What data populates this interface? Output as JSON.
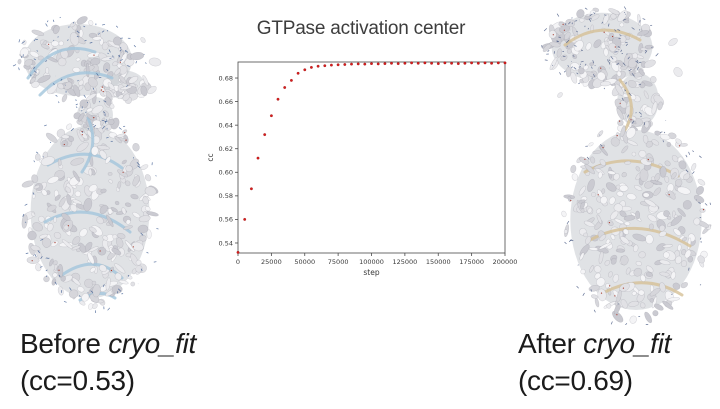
{
  "before_panel": {
    "image": "cryo-em-density-map-before",
    "label_prefix": "Before ",
    "program_name": "cryo_fit",
    "cc_line": "(cc=0.53)"
  },
  "after_panel": {
    "image": "cryo-em-density-map-after",
    "label_prefix": "After ",
    "program_name": "cryo_fit",
    "cc_line": "(cc=0.69)"
  },
  "chart_data": {
    "type": "scatter",
    "title": "GTPase activation center",
    "xlabel": "step",
    "ylabel": "cc",
    "grid": false,
    "legend": null,
    "marker_color": "#d81c1c",
    "marker_edge_color": "#8f0f0f",
    "xlim": [
      0,
      200000
    ],
    "ylim": [
      0.5315,
      0.6936
    ],
    "xticks": [
      0,
      25000,
      50000,
      75000,
      100000,
      125000,
      150000,
      175000,
      200000
    ],
    "yticks": [
      0.54,
      0.56,
      0.58,
      0.6,
      0.62,
      0.64,
      0.66,
      0.68
    ],
    "x": [
      0,
      5000,
      10000,
      15000,
      20000,
      25000,
      30000,
      35000,
      40000,
      45000,
      50000,
      55000,
      60000,
      65000,
      70000,
      75000,
      80000,
      85000,
      90000,
      95000,
      100000,
      105000,
      110000,
      115000,
      120000,
      125000,
      130000,
      135000,
      140000,
      145000,
      150000,
      155000,
      160000,
      165000,
      170000,
      175000,
      180000,
      185000,
      190000,
      195000,
      200000
    ],
    "y": [
      0.532,
      0.56,
      0.586,
      0.612,
      0.632,
      0.648,
      0.662,
      0.672,
      0.678,
      0.684,
      0.687,
      0.689,
      0.69,
      0.6905,
      0.691,
      0.6912,
      0.6915,
      0.6918,
      0.692,
      0.6918,
      0.6922,
      0.692,
      0.6922,
      0.6925,
      0.6922,
      0.6925,
      0.6928,
      0.6925,
      0.6928,
      0.6925,
      0.6922,
      0.6928,
      0.6925,
      0.6922,
      0.6925,
      0.6928,
      0.6925,
      0.6928,
      0.6925,
      0.6928,
      0.6928
    ]
  }
}
